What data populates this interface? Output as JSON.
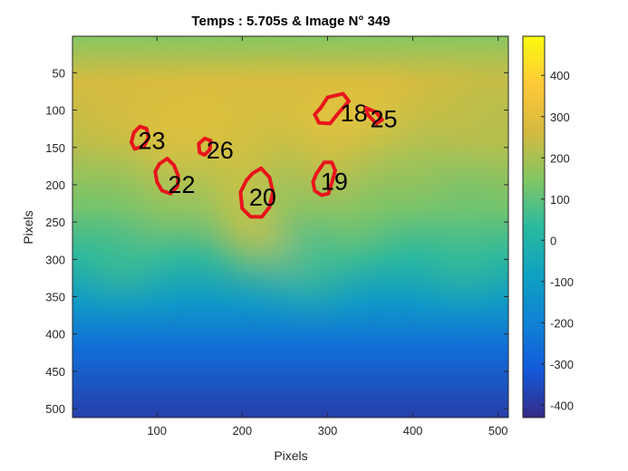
{
  "chart_data": {
    "type": "heatmap",
    "title": "Temps : 5.705s & Image N° 349",
    "xlabel": "Pixels",
    "ylabel": "Pixels",
    "xlim": [
      1,
      512
    ],
    "ylim": [
      1,
      512
    ],
    "y_reversed": true,
    "x_ticks": [
      100,
      200,
      300,
      400,
      500
    ],
    "y_ticks": [
      50,
      100,
      150,
      200,
      250,
      300,
      350,
      400,
      450,
      500
    ],
    "colorbar": {
      "colormap": "parula",
      "range": [
        -430,
        495
      ],
      "ticks": [
        400,
        300,
        200,
        100,
        0,
        -100,
        -200,
        -300,
        -400
      ]
    },
    "field": [
      {
        "x": 40,
        "y": 100,
        "v": 280
      },
      {
        "x": 100,
        "y": 110,
        "v": 320
      },
      {
        "x": 160,
        "y": 105,
        "v": 330
      },
      {
        "x": 230,
        "y": 90,
        "v": 300
      },
      {
        "x": 300,
        "y": 110,
        "v": 360
      },
      {
        "x": 360,
        "y": 100,
        "v": 330
      },
      {
        "x": 440,
        "y": 90,
        "v": 240
      },
      {
        "x": 500,
        "y": 90,
        "v": 200
      },
      {
        "x": 120,
        "y": 170,
        "v": 300
      },
      {
        "x": 200,
        "y": 170,
        "v": 320
      },
      {
        "x": 300,
        "y": 180,
        "v": 270
      },
      {
        "x": 400,
        "y": 170,
        "v": 180
      },
      {
        "x": 200,
        "y": 240,
        "v": 300
      },
      {
        "x": 220,
        "y": 270,
        "v": 340
      },
      {
        "x": 110,
        "y": 230,
        "v": 180
      },
      {
        "x": 330,
        "y": 250,
        "v": 160
      },
      {
        "x": 460,
        "y": 220,
        "v": 120
      },
      {
        "x": 60,
        "y": 300,
        "v": 80
      },
      {
        "x": 280,
        "y": 310,
        "v": 80
      },
      {
        "x": 460,
        "y": 300,
        "v": 60
      }
    ],
    "regions": [
      {
        "label": "18",
        "points": [
          [
            292,
            97
          ],
          [
            300,
            83
          ],
          [
            318,
            78
          ],
          [
            325,
            88
          ],
          [
            312,
            105
          ],
          [
            303,
            118
          ],
          [
            290,
            117
          ],
          [
            285,
            106
          ]
        ],
        "label_at": [
          315,
          104
        ]
      },
      {
        "label": "25",
        "points": [
          [
            345,
            97
          ],
          [
            357,
            103
          ],
          [
            364,
            113
          ],
          [
            357,
            118
          ],
          [
            347,
            106
          ]
        ],
        "label_at": [
          350,
          112
        ]
      },
      {
        "label": "23",
        "points": [
          [
            73,
            130
          ],
          [
            80,
            122
          ],
          [
            88,
            125
          ],
          [
            90,
            137
          ],
          [
            85,
            148
          ],
          [
            74,
            152
          ],
          [
            70,
            143
          ]
        ],
        "label_at": [
          78,
          141
        ]
      },
      {
        "label": "26",
        "points": [
          [
            149,
            145
          ],
          [
            156,
            138
          ],
          [
            163,
            141
          ],
          [
            162,
            153
          ],
          [
            156,
            160
          ],
          [
            150,
            157
          ]
        ],
        "label_at": [
          158,
          154
        ]
      },
      {
        "label": "22",
        "points": [
          [
            103,
            172
          ],
          [
            112,
            165
          ],
          [
            120,
            174
          ],
          [
            125,
            188
          ],
          [
            124,
            202
          ],
          [
            116,
            212
          ],
          [
            106,
            208
          ],
          [
            100,
            196
          ],
          [
            98,
            182
          ]
        ],
        "label_at": [
          113,
          200
        ]
      },
      {
        "label": "19",
        "points": [
          [
            287,
            185
          ],
          [
            296,
            170
          ],
          [
            305,
            170
          ],
          [
            309,
            181
          ],
          [
            305,
            197
          ],
          [
            301,
            212
          ],
          [
            293,
            214
          ],
          [
            285,
            208
          ],
          [
            283,
            196
          ]
        ],
        "label_at": [
          292,
          196
        ]
      },
      {
        "label": "20",
        "points": [
          [
            212,
            185
          ],
          [
            222,
            178
          ],
          [
            232,
            190
          ],
          [
            236,
            210
          ],
          [
            232,
            230
          ],
          [
            223,
            243
          ],
          [
            210,
            243
          ],
          [
            200,
            232
          ],
          [
            198,
            210
          ],
          [
            205,
            194
          ]
        ],
        "label_at": [
          208,
          217
        ]
      }
    ]
  }
}
